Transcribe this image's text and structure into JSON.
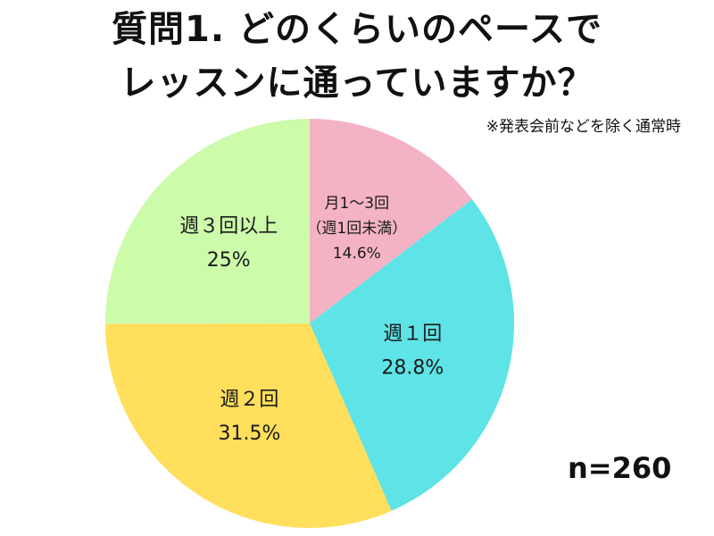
{
  "title": {
    "line1": "質問1. どのくらいのペースで",
    "line2": "レッスンに通っていますか？"
  },
  "note": "※発表会前などを除く通常時",
  "sample_size": "n=260",
  "chart_data": {
    "type": "pie",
    "slices": [
      {
        "label_lines": [
          "月1〜3回",
          "（週1回未満）"
        ],
        "value": 14.6,
        "value_label": "14.6%",
        "color": "#f4b3c4"
      },
      {
        "label_lines": [
          "週１回"
        ],
        "value": 28.8,
        "value_label": "28.8%",
        "color": "#5ee3e6"
      },
      {
        "label_lines": [
          "週２回"
        ],
        "value": 31.5,
        "value_label": "31.5%",
        "color": "#ffdf5c"
      },
      {
        "label_lines": [
          "週３回以上"
        ],
        "value": 25,
        "value_label": "25%",
        "color": "#ccfbaa"
      }
    ],
    "start": "12 o'clock",
    "direction": "clockwise"
  }
}
